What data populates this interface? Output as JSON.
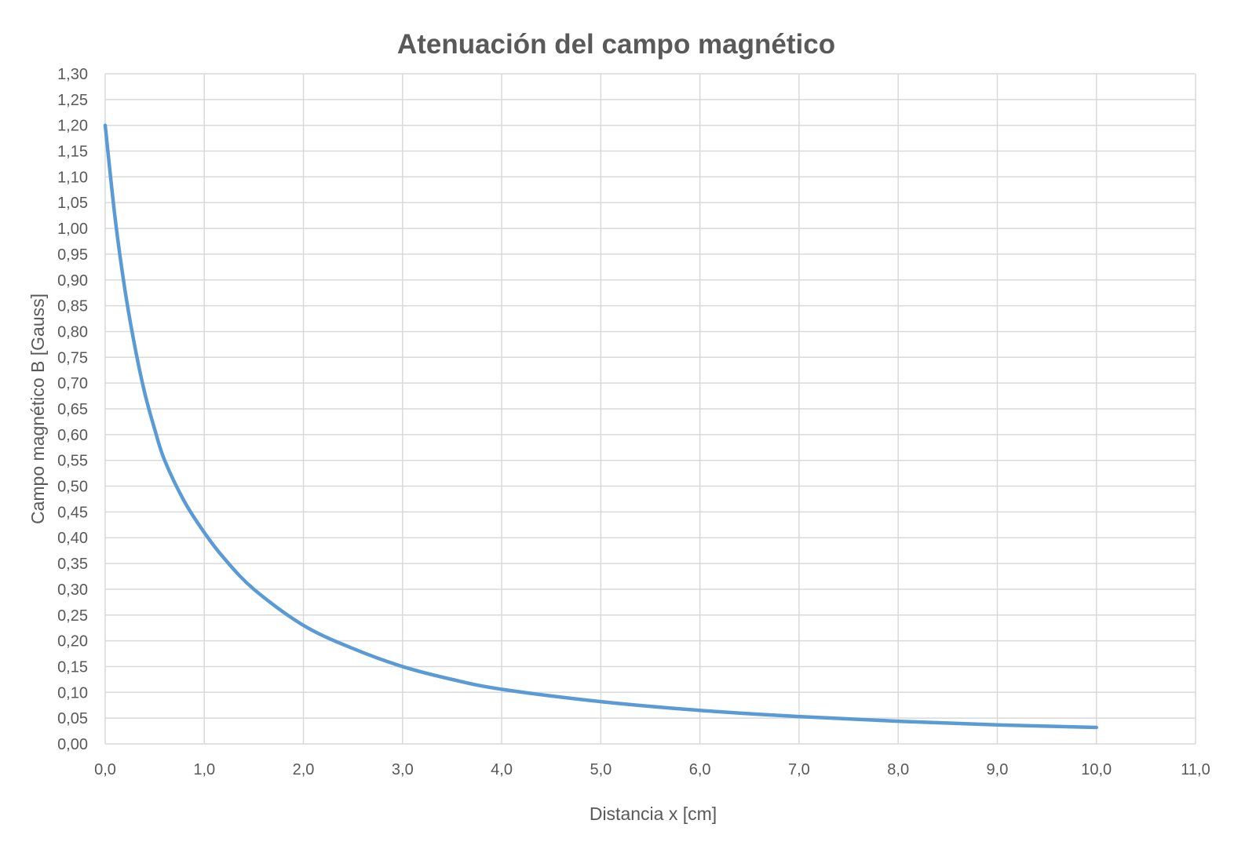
{
  "chart_data": {
    "type": "line",
    "title": "Atenuación del campo magnético",
    "xlabel": "Distancia x [cm]",
    "ylabel": "Campo magnético B [Gauss]",
    "xlim": [
      0,
      11
    ],
    "ylim": [
      0,
      1.3
    ],
    "x_ticks": [
      "0,0",
      "1,0",
      "2,0",
      "3,0",
      "4,0",
      "5,0",
      "6,0",
      "7,0",
      "8,0",
      "9,0",
      "10,0",
      "11,0"
    ],
    "y_ticks": [
      "0,00",
      "0,05",
      "0,10",
      "0,15",
      "0,20",
      "0,25",
      "0,30",
      "0,35",
      "0,40",
      "0,45",
      "0,50",
      "0,55",
      "0,60",
      "0,65",
      "0,70",
      "0,75",
      "0,80",
      "0,85",
      "0,90",
      "0,95",
      "1,00",
      "1,05",
      "1,10",
      "1,15",
      "1,20",
      "1,25",
      "1,30"
    ],
    "grid": true,
    "legend": "none",
    "line_color": "#5B9BD5",
    "grid_color": "#D9D9D9",
    "text_color": "#595959",
    "series": [
      {
        "x": [
          0,
          0.1,
          0.2,
          0.3,
          0.4,
          0.5,
          0.6,
          0.8,
          1.0,
          1.2,
          1.5,
          2.0,
          2.5,
          3.0,
          3.5,
          4.0,
          5.0,
          6.0,
          7.0,
          8.0,
          9.0,
          10.0
        ],
        "values": [
          1.2,
          1.02,
          0.88,
          0.77,
          0.68,
          0.61,
          0.55,
          0.47,
          0.41,
          0.36,
          0.3,
          0.23,
          0.185,
          0.15,
          0.125,
          0.106,
          0.082,
          0.065,
          0.053,
          0.044,
          0.037,
          0.032
        ]
      }
    ]
  }
}
